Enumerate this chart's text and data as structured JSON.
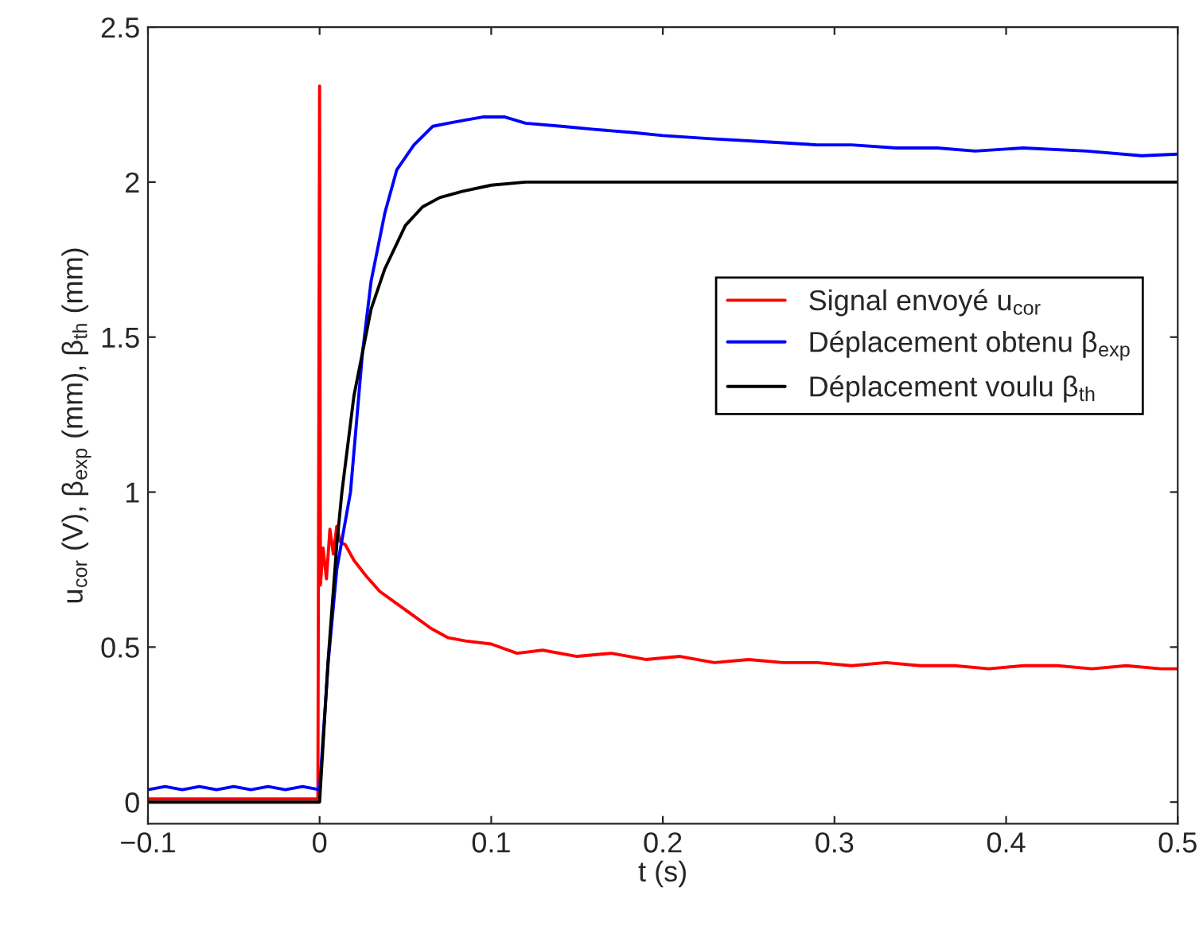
{
  "chart_data": {
    "type": "line",
    "xlabel": "t (s)",
    "ylabel": "u$_{cor}$ (V), β$_{exp}$ (mm), β$_{th}$ (mm)",
    "xlim": [
      -0.1,
      0.5
    ],
    "ylim": [
      -0.07,
      2.5
    ],
    "xticks": [
      {
        "value": -0.1,
        "label": "−0.1"
      },
      0,
      0.1,
      0.2,
      0.3,
      0.4,
      0.5
    ],
    "yticks": [
      0,
      0.5,
      1,
      1.5,
      2,
      2.5
    ],
    "grid": false,
    "legend": "right",
    "marker": "none",
    "line_style": "solid",
    "series": [
      {
        "name": "Signal envoyé u$_{cor}$",
        "color": "#ff0000",
        "x": [
          -0.1,
          -0.05,
          -0.001,
          0,
          0.0005,
          0.002,
          0.004,
          0.006,
          0.008,
          0.01,
          0.012,
          0.015,
          0.02,
          0.027,
          0.035,
          0.045,
          0.055,
          0.065,
          0.075,
          0.085,
          0.1,
          0.115,
          0.13,
          0.15,
          0.17,
          0.19,
          0.21,
          0.23,
          0.25,
          0.27,
          0.29,
          0.31,
          0.33,
          0.35,
          0.37,
          0.39,
          0.41,
          0.43,
          0.45,
          0.47,
          0.49,
          0.5
        ],
        "values": [
          0.01,
          0.01,
          0.01,
          2.31,
          0.7,
          0.82,
          0.72,
          0.88,
          0.8,
          0.89,
          0.84,
          0.83,
          0.78,
          0.73,
          0.68,
          0.64,
          0.6,
          0.56,
          0.53,
          0.52,
          0.51,
          0.48,
          0.49,
          0.47,
          0.48,
          0.46,
          0.47,
          0.45,
          0.46,
          0.45,
          0.45,
          0.44,
          0.45,
          0.44,
          0.44,
          0.43,
          0.44,
          0.44,
          0.43,
          0.44,
          0.43,
          0.43
        ]
      },
      {
        "name": "Déplacement obtenu β$_{exp}$",
        "color": "#0000ff",
        "x": [
          -0.1,
          -0.09,
          -0.08,
          -0.07,
          -0.06,
          -0.05,
          -0.04,
          -0.03,
          -0.02,
          -0.01,
          0,
          0.005,
          0.01,
          0.018,
          0.025,
          0.03,
          0.038,
          0.045,
          0.055,
          0.066,
          0.075,
          0.085,
          0.095,
          0.108,
          0.12,
          0.141,
          0.16,
          0.182,
          0.2,
          0.228,
          0.26,
          0.29,
          0.31,
          0.336,
          0.36,
          0.382,
          0.41,
          0.447,
          0.479,
          0.5
        ],
        "values": [
          0.04,
          0.05,
          0.04,
          0.05,
          0.04,
          0.05,
          0.04,
          0.05,
          0.04,
          0.05,
          0.04,
          0.45,
          0.75,
          1.0,
          1.45,
          1.68,
          1.9,
          2.04,
          2.12,
          2.18,
          2.19,
          2.2,
          2.21,
          2.21,
          2.19,
          2.18,
          2.17,
          2.16,
          2.15,
          2.14,
          2.13,
          2.12,
          2.12,
          2.11,
          2.11,
          2.1,
          2.11,
          2.1,
          2.085,
          2.09
        ]
      },
      {
        "name": "Déplacement voulu β$_{th}$",
        "color": "#000000",
        "x": [
          -0.1,
          0,
          0.005,
          0.01,
          0.013,
          0.02,
          0.03,
          0.038,
          0.05,
          0.06,
          0.07,
          0.083,
          0.1,
          0.12,
          0.15,
          0.2,
          0.5
        ],
        "values": [
          0,
          0,
          0.46,
          0.83,
          1.0,
          1.31,
          1.59,
          1.72,
          1.86,
          1.92,
          1.95,
          1.97,
          1.99,
          2.0,
          2.0,
          2.0,
          2.0
        ]
      }
    ]
  }
}
